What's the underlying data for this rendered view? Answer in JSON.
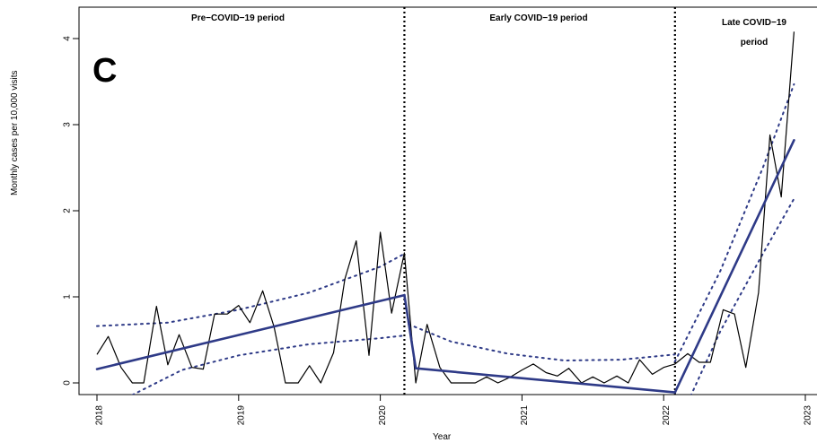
{
  "panel_letter": "C",
  "chart_data": {
    "type": "line",
    "title": "",
    "xlabel": "Year",
    "ylabel": "Monthly cases per 10,000 visits",
    "xlim": [
      2018,
      2023
    ],
    "ylim": [
      0,
      4
    ],
    "x_ticks": [
      "2018",
      "2019",
      "2020",
      "2021",
      "2022",
      "2023"
    ],
    "y_ticks": [
      "0",
      "1",
      "2",
      "3",
      "4"
    ],
    "grid": false,
    "periods": [
      {
        "label_lines": [
          "Pre−COVID−19 period"
        ],
        "x_start": 2018.0,
        "x_end": 2020.17
      },
      {
        "label_lines": [
          "Early COVID−19 period"
        ],
        "x_start": 2020.17,
        "x_end": 2022.08
      },
      {
        "label_lines": [
          "Late COVID−19",
          "period"
        ],
        "x_start": 2022.08,
        "x_end": 2023.0
      }
    ],
    "period_boundaries": [
      2020.17,
      2022.08
    ],
    "observed": {
      "color": "#000000",
      "x": [
        2018.0,
        2018.08,
        2018.17,
        2018.25,
        2018.33,
        2018.42,
        2018.5,
        2018.58,
        2018.67,
        2018.75,
        2018.83,
        2018.92,
        2019.0,
        2019.08,
        2019.17,
        2019.25,
        2019.33,
        2019.42,
        2019.5,
        2019.58,
        2019.67,
        2019.75,
        2019.83,
        2019.92,
        2020.0,
        2020.08,
        2020.17,
        2020.25,
        2020.33,
        2020.42,
        2020.5,
        2020.58,
        2020.67,
        2020.75,
        2020.83,
        2020.92,
        2021.0,
        2021.08,
        2021.17,
        2021.25,
        2021.33,
        2021.42,
        2021.5,
        2021.58,
        2021.67,
        2021.75,
        2021.83,
        2021.92,
        2022.0,
        2022.08,
        2022.17,
        2022.25,
        2022.33,
        2022.42,
        2022.5,
        2022.58,
        2022.67,
        2022.75,
        2022.83,
        2022.92
      ],
      "y": [
        0.33,
        0.54,
        0.18,
        0.0,
        0.0,
        0.89,
        0.21,
        0.56,
        0.18,
        0.16,
        0.8,
        0.8,
        0.9,
        0.7,
        1.07,
        0.65,
        0.0,
        0.0,
        0.2,
        0.0,
        0.35,
        1.21,
        1.65,
        0.32,
        1.75,
        0.81,
        1.51,
        0.0,
        0.68,
        0.18,
        0.0,
        0.0,
        0.0,
        0.07,
        0.0,
        0.07,
        0.15,
        0.22,
        0.12,
        0.08,
        0.17,
        0.0,
        0.07,
        0.0,
        0.08,
        0.0,
        0.27,
        0.1,
        0.18,
        0.22,
        0.34,
        0.24,
        0.24,
        0.85,
        0.8,
        0.18,
        1.05,
        2.88,
        2.16,
        4.08
      ]
    },
    "fitted": {
      "color": "#2e3a87",
      "segments": [
        {
          "x": [
            2018.0,
            2020.17
          ],
          "y": [
            0.16,
            1.02
          ]
        },
        {
          "x": [
            2020.17,
            2020.25
          ],
          "y": [
            1.02,
            0.17
          ]
        },
        {
          "x": [
            2020.25,
            2022.08
          ],
          "y": [
            0.17,
            -0.11
          ]
        },
        {
          "x": [
            2022.08,
            2022.92
          ],
          "y": [
            -0.11,
            2.82
          ]
        }
      ]
    },
    "confidence_band": {
      "color": "#2e3a87",
      "upper": [
        {
          "x": [
            2018.0,
            2018.5,
            2019.0,
            2019.5,
            2020.0,
            2020.17
          ],
          "y": [
            0.66,
            0.7,
            0.85,
            1.05,
            1.35,
            1.5
          ]
        },
        {
          "x": [
            2020.2,
            2020.5,
            2020.9,
            2021.3,
            2021.7,
            2022.08
          ],
          "y": [
            0.68,
            0.48,
            0.34,
            0.26,
            0.27,
            0.33
          ]
        },
        {
          "x": [
            2022.08,
            2022.4,
            2022.7,
            2022.92
          ],
          "y": [
            0.25,
            1.3,
            2.5,
            3.47
          ]
        }
      ],
      "lower": [
        {
          "x": [
            2018.25,
            2018.6,
            2019.0,
            2019.5,
            2020.0,
            2020.17
          ],
          "y": [
            -0.14,
            0.15,
            0.32,
            0.45,
            0.52,
            0.55
          ]
        },
        {
          "x": [
            2020.2,
            2020.6,
            2021.0,
            2021.5,
            2022.08
          ],
          "y": [
            -0.15,
            -0.32,
            -0.43,
            -0.5,
            -0.55
          ]
        },
        {
          "x": [
            2022.08,
            2022.4,
            2022.7,
            2022.92
          ],
          "y": [
            -0.55,
            0.6,
            1.5,
            2.14
          ]
        }
      ]
    }
  }
}
